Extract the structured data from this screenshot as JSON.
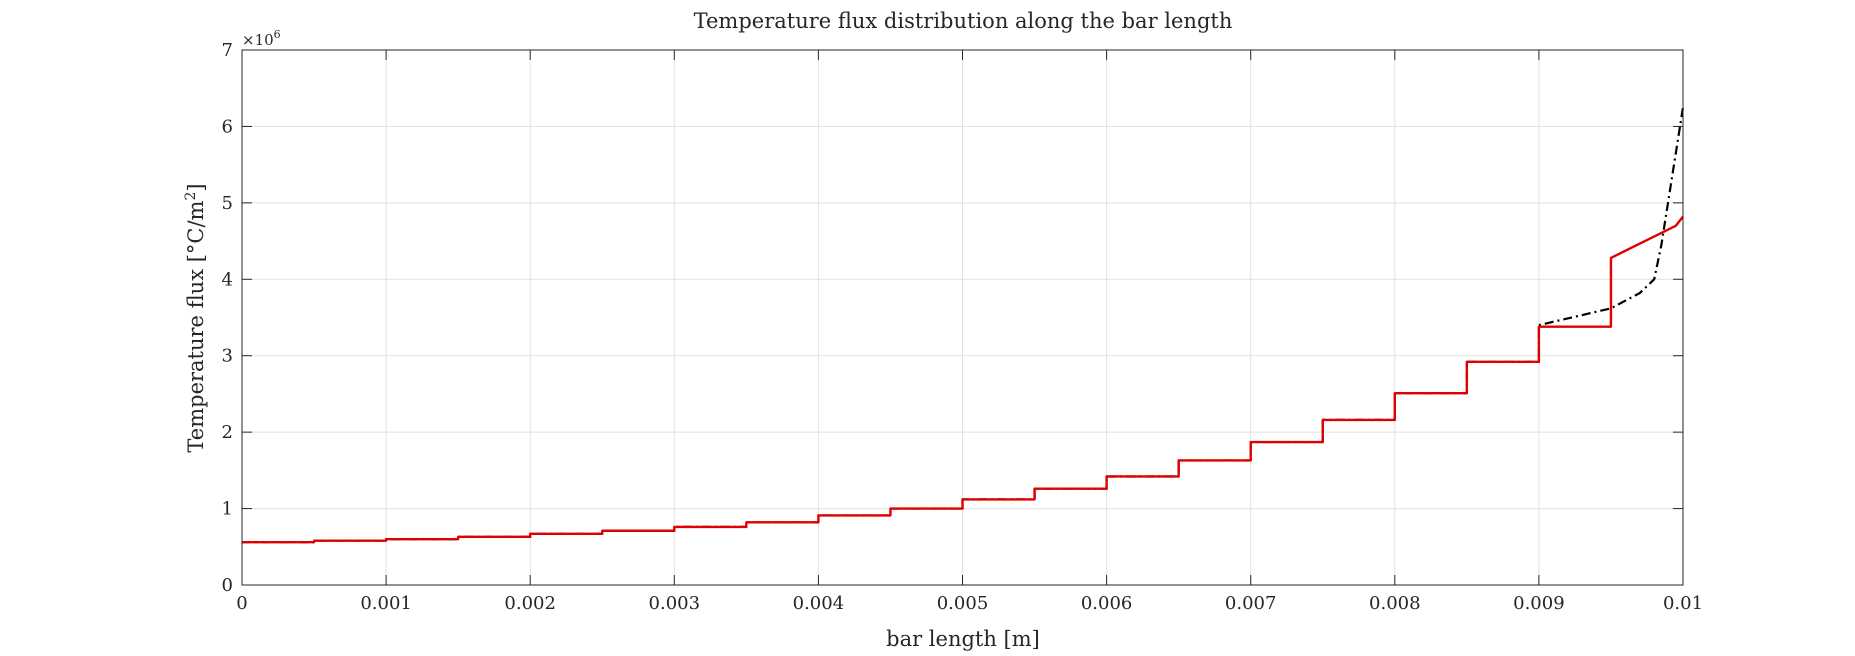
{
  "chart_data": {
    "type": "line",
    "title": "Temperature flux distribution along the bar length",
    "xlabel": "bar length [m]",
    "ylabel": "Temperature flux [°C/m",
    "ylabel_superscript": "2",
    "ylabel_suffix": "]",
    "y_exponent_label": "×10",
    "y_exponent_power": "6",
    "xlim": [
      0,
      0.01
    ],
    "ylim": [
      0,
      7
    ],
    "x_ticks": [
      0,
      0.001,
      0.002,
      0.003,
      0.004,
      0.005,
      0.006,
      0.007,
      0.008,
      0.009,
      0.01
    ],
    "x_tick_labels": [
      "0",
      "0.001",
      "0.002",
      "0.003",
      "0.004",
      "0.005",
      "0.006",
      "0.007",
      "0.008",
      "0.009",
      "0.01"
    ],
    "y_ticks": [
      0,
      1,
      2,
      3,
      4,
      5,
      6,
      7
    ],
    "y_tick_labels": [
      "0",
      "1",
      "2",
      "3",
      "4",
      "5",
      "6",
      "7"
    ],
    "grid": true,
    "series": [
      {
        "color": "#000000",
        "style": "dash-dot",
        "x": [
          0,
          0.0005,
          0.0005,
          0.001,
          0.001,
          0.0015,
          0.0015,
          0.002,
          0.002,
          0.0025,
          0.0025,
          0.003,
          0.003,
          0.0035,
          0.0035,
          0.004,
          0.004,
          0.0045,
          0.0045,
          0.005,
          0.005,
          0.0055,
          0.0055,
          0.006,
          0.006,
          0.0065,
          0.0065,
          0.007,
          0.007,
          0.0075,
          0.0075,
          0.008,
          0.008,
          0.0085,
          0.0085,
          0.009,
          0.009,
          0.0095,
          0.0097,
          0.0098,
          0.00985,
          0.0099,
          0.00995,
          0.01
        ],
        "y": [
          0.56,
          0.56,
          0.58,
          0.58,
          0.6,
          0.6,
          0.63,
          0.63,
          0.67,
          0.67,
          0.71,
          0.71,
          0.76,
          0.76,
          0.82,
          0.82,
          0.91,
          0.91,
          1.0,
          1.0,
          1.12,
          1.12,
          1.26,
          1.26,
          1.42,
          1.42,
          1.63,
          1.63,
          1.87,
          1.87,
          2.16,
          2.16,
          2.51,
          2.51,
          2.92,
          2.92,
          3.4,
          3.62,
          3.82,
          4.0,
          4.45,
          5.05,
          5.65,
          6.25
        ]
      },
      {
        "color": "#e00000",
        "style": "solid",
        "x": [
          0,
          0.0005,
          0.0005,
          0.001,
          0.001,
          0.0015,
          0.0015,
          0.002,
          0.002,
          0.0025,
          0.0025,
          0.003,
          0.003,
          0.0035,
          0.0035,
          0.004,
          0.004,
          0.0045,
          0.0045,
          0.005,
          0.005,
          0.0055,
          0.0055,
          0.006,
          0.006,
          0.0065,
          0.0065,
          0.007,
          0.007,
          0.0075,
          0.0075,
          0.008,
          0.008,
          0.0085,
          0.0085,
          0.009,
          0.009,
          0.0095,
          0.0095,
          0.00995,
          0.01
        ],
        "y": [
          0.56,
          0.56,
          0.58,
          0.58,
          0.6,
          0.6,
          0.63,
          0.63,
          0.67,
          0.67,
          0.71,
          0.71,
          0.76,
          0.76,
          0.82,
          0.82,
          0.91,
          0.91,
          1.0,
          1.0,
          1.12,
          1.12,
          1.26,
          1.26,
          1.42,
          1.42,
          1.63,
          1.63,
          1.87,
          1.87,
          2.16,
          2.16,
          2.51,
          2.51,
          2.92,
          2.92,
          3.38,
          3.38,
          4.28,
          4.7,
          4.82
        ]
      }
    ]
  }
}
